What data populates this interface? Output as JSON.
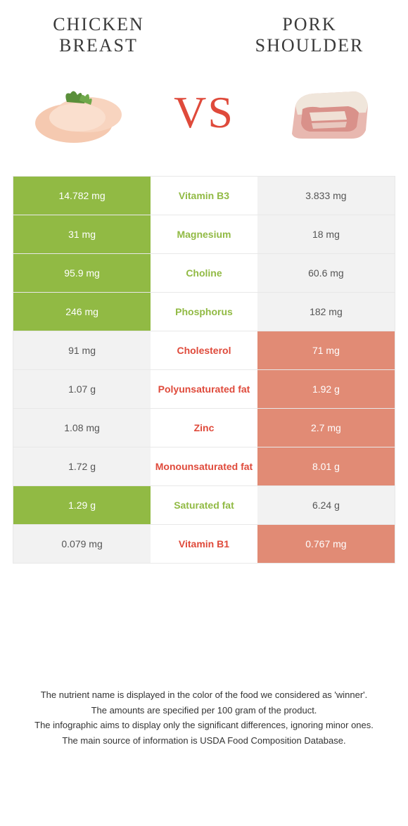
{
  "colors": {
    "left_win_bg": "#91ba44",
    "right_win_bg": "#e18b75",
    "lose_bg": "#f2f2f2",
    "left_text": "#91ba44",
    "right_text": "#df4a3b",
    "vs_color": "#df4a3b",
    "border": "#e8e8e8"
  },
  "header": {
    "left_title": "CHICKEN BREAST",
    "right_title": "PORK SHOULDER",
    "vs": "VS"
  },
  "rows": [
    {
      "nutrient": "Vitamin B3",
      "left": "14.782 mg",
      "right": "3.833 mg",
      "winner": "left"
    },
    {
      "nutrient": "Magnesium",
      "left": "31 mg",
      "right": "18 mg",
      "winner": "left"
    },
    {
      "nutrient": "Choline",
      "left": "95.9 mg",
      "right": "60.6 mg",
      "winner": "left"
    },
    {
      "nutrient": "Phosphorus",
      "left": "246 mg",
      "right": "182 mg",
      "winner": "left"
    },
    {
      "nutrient": "Cholesterol",
      "left": "91 mg",
      "right": "71 mg",
      "winner": "right"
    },
    {
      "nutrient": "Polyunsaturated fat",
      "left": "1.07 g",
      "right": "1.92 g",
      "winner": "right"
    },
    {
      "nutrient": "Zinc",
      "left": "1.08 mg",
      "right": "2.7 mg",
      "winner": "right"
    },
    {
      "nutrient": "Monounsaturated fat",
      "left": "1.72 g",
      "right": "8.01 g",
      "winner": "right"
    },
    {
      "nutrient": "Saturated fat",
      "left": "1.29 g",
      "right": "6.24 g",
      "winner": "left"
    },
    {
      "nutrient": "Vitamin B1",
      "left": "0.079 mg",
      "right": "0.767 mg",
      "winner": "right"
    }
  ],
  "footer": {
    "line1": "The nutrient name is displayed in the color of the food we considered as 'winner'.",
    "line2": "The amounts are specified per 100 gram of the product.",
    "line3": "The infographic aims to display only the significant differences, ignoring minor ones.",
    "line4": "The main source of information is USDA Food Composition Database."
  }
}
